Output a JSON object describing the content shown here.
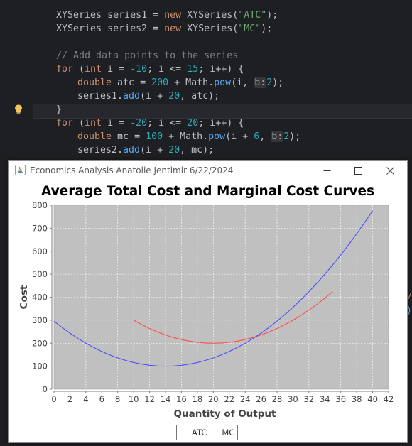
{
  "editor": {
    "lines": [
      {
        "indent": 1,
        "html": [
          [
            "ty",
            "XYSeries "
          ],
          [
            "",
            "series1 = "
          ],
          [
            "kw",
            "new "
          ],
          [
            "ty",
            "XYSeries("
          ],
          [
            "str",
            "\"ATC\""
          ],
          [
            "",
            ");"
          ]
        ]
      },
      {
        "indent": 1,
        "html": [
          [
            "ty",
            "XYSeries "
          ],
          [
            "",
            "series2 = "
          ],
          [
            "kw",
            "new "
          ],
          [
            "ty",
            "XYSeries("
          ],
          [
            "str",
            "\"MC\""
          ],
          [
            "",
            ");"
          ]
        ]
      },
      {
        "indent": 1,
        "html": []
      },
      {
        "indent": 1,
        "html": [
          [
            "cm",
            "// Add data points to the series"
          ]
        ]
      },
      {
        "indent": 1,
        "html": [
          [
            "kw",
            "for "
          ],
          [
            "",
            "("
          ],
          [
            "kw",
            "int "
          ],
          [
            "",
            "i = "
          ],
          [
            "num",
            "-10"
          ],
          [
            "",
            "; i <= "
          ],
          [
            "num",
            "15"
          ],
          [
            "",
            "; i++) {"
          ]
        ]
      },
      {
        "indent": 2,
        "html": [
          [
            "kw",
            "double "
          ],
          [
            "",
            "atc = "
          ],
          [
            "num",
            "200"
          ],
          [
            "",
            " + Math."
          ],
          [
            "fn",
            "pow"
          ],
          [
            "",
            "(i, "
          ],
          [
            "hint",
            "b:"
          ],
          [
            "num",
            "2"
          ],
          [
            "",
            ");"
          ]
        ]
      },
      {
        "indent": 2,
        "html": [
          [
            "",
            "series1."
          ],
          [
            "fn",
            "add"
          ],
          [
            "",
            "(i + "
          ],
          [
            "num",
            "20"
          ],
          [
            "",
            ", atc);"
          ]
        ]
      },
      {
        "indent": 1,
        "html": [
          [
            "",
            "}"
          ]
        ]
      },
      {
        "indent": 1,
        "html": [
          [
            "kw",
            "for "
          ],
          [
            "",
            "("
          ],
          [
            "kw",
            "int "
          ],
          [
            "",
            "i = "
          ],
          [
            "num",
            "-20"
          ],
          [
            "",
            "; i <= "
          ],
          [
            "num",
            "20"
          ],
          [
            "",
            "; i++) {"
          ]
        ]
      },
      {
        "indent": 2,
        "html": [
          [
            "kw",
            "double "
          ],
          [
            "",
            "mc = "
          ],
          [
            "num",
            "100"
          ],
          [
            "",
            " + Math."
          ],
          [
            "fn",
            "pow"
          ],
          [
            "",
            "(i + "
          ],
          [
            "num",
            "6"
          ],
          [
            "",
            ", "
          ],
          [
            "hint",
            "b:"
          ],
          [
            "num",
            "2"
          ],
          [
            "",
            ");"
          ]
        ]
      },
      {
        "indent": 2,
        "html": [
          [
            "",
            "series2."
          ],
          [
            "fn",
            "add"
          ],
          [
            "",
            "(i + "
          ],
          [
            "num",
            "20"
          ],
          [
            "",
            ", mc);"
          ]
        ]
      }
    ],
    "right_fragments": [
      "/",
      ")"
    ]
  },
  "window": {
    "title": "Economics Analysis Anatolie Jentimir 6/22/2024",
    "minimize_icon": "minimize-icon",
    "maximize_icon": "maximize-icon",
    "close_icon": "close-icon"
  },
  "chart_data": {
    "type": "line",
    "title": "Average Total Cost and Marginal Cost Curves",
    "xlabel": "Quantity of Output",
    "ylabel": "Cost",
    "xlim": [
      0,
      42
    ],
    "ylim": [
      0,
      800
    ],
    "xticks": [
      0,
      2,
      4,
      6,
      8,
      10,
      12,
      14,
      16,
      18,
      20,
      22,
      24,
      26,
      28,
      30,
      32,
      34,
      36,
      38,
      40,
      42
    ],
    "yticks": [
      0,
      100,
      200,
      300,
      400,
      500,
      600,
      700,
      800
    ],
    "grid": true,
    "legend_position": "bottom-center",
    "series": [
      {
        "name": "ATC",
        "color": "#ff4d4d",
        "x_range": [
          10,
          35
        ],
        "values_note": "",
        "fn": "atc"
      },
      {
        "name": "MC",
        "color": "#4d4dff",
        "x_range": [
          0,
          40
        ],
        "values_note": "",
        "fn": "mc"
      }
    ],
    "atc_points": [
      [
        10,
        300
      ],
      [
        11,
        281
      ],
      [
        12,
        264
      ],
      [
        13,
        249
      ],
      [
        14,
        236
      ],
      [
        15,
        225
      ],
      [
        16,
        216
      ],
      [
        17,
        209
      ],
      [
        18,
        204
      ],
      [
        19,
        201
      ],
      [
        20,
        200
      ],
      [
        21,
        201
      ],
      [
        22,
        204
      ],
      [
        23,
        209
      ],
      [
        24,
        216
      ],
      [
        25,
        225
      ],
      [
        26,
        236
      ],
      [
        27,
        249
      ],
      [
        28,
        264
      ],
      [
        29,
        281
      ],
      [
        30,
        300
      ],
      [
        31,
        321
      ],
      [
        32,
        344
      ],
      [
        33,
        369
      ],
      [
        34,
        396
      ],
      [
        35,
        425
      ]
    ],
    "mc_points": [
      [
        0,
        296
      ],
      [
        1,
        269
      ],
      [
        2,
        244
      ],
      [
        3,
        221
      ],
      [
        4,
        200
      ],
      [
        5,
        181
      ],
      [
        6,
        164
      ],
      [
        7,
        149
      ],
      [
        8,
        136
      ],
      [
        9,
        125
      ],
      [
        10,
        116
      ],
      [
        11,
        109
      ],
      [
        12,
        104
      ],
      [
        13,
        101
      ],
      [
        14,
        100
      ],
      [
        15,
        101
      ],
      [
        16,
        104
      ],
      [
        17,
        109
      ],
      [
        18,
        116
      ],
      [
        19,
        125
      ],
      [
        20,
        136
      ],
      [
        21,
        149
      ],
      [
        22,
        164
      ],
      [
        23,
        181
      ],
      [
        24,
        200
      ],
      [
        25,
        221
      ],
      [
        26,
        244
      ],
      [
        27,
        269
      ],
      [
        28,
        296
      ],
      [
        29,
        325
      ],
      [
        30,
        356
      ],
      [
        31,
        389
      ],
      [
        32,
        424
      ],
      [
        33,
        461
      ],
      [
        34,
        500
      ],
      [
        35,
        541
      ],
      [
        36,
        584
      ],
      [
        37,
        629
      ],
      [
        38,
        676
      ],
      [
        39,
        725
      ],
      [
        40,
        776
      ]
    ]
  }
}
